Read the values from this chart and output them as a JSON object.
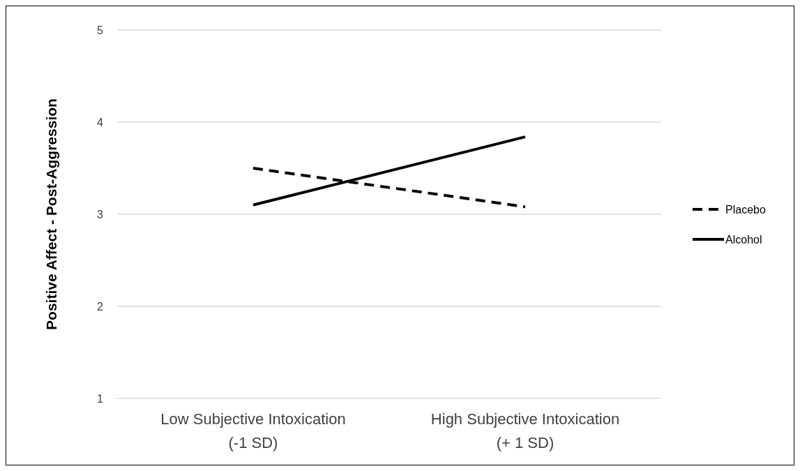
{
  "chart_data": {
    "type": "line",
    "ylabel": "Positive Affect - Post-Aggression",
    "categories": [
      "Low Subjective Intoxication\n(-1 SD)",
      "High Subjective Intoxication\n(+ 1 SD)"
    ],
    "series": [
      {
        "name": "Placebo",
        "color": "#000000",
        "line_style": "dashed",
        "values": [
          3.5,
          3.08
        ]
      },
      {
        "name": "Alcohol",
        "color": "#000000",
        "line_style": "solid",
        "values": [
          3.1,
          3.84
        ]
      }
    ],
    "ylim": [
      1,
      5
    ],
    "yticks": [
      1,
      2,
      3,
      4,
      5
    ],
    "grid": "y",
    "legend": "right",
    "marker": "none"
  }
}
